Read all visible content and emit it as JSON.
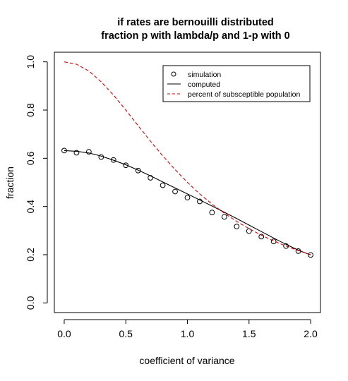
{
  "chart_data": {
    "type": "line",
    "title_line1": "if rates are bernouilli distributed",
    "title_line2": "fraction p with lambda/p and 1-p with 0",
    "xlabel": "coefficient of variance",
    "ylabel": "fraction",
    "xlim": [
      -0.08,
      2.08
    ],
    "ylim": [
      -0.04,
      1.04
    ],
    "xticks": [
      0,
      0.5,
      1,
      1.5,
      2
    ],
    "xtick_labels": [
      "0.0",
      "0.5",
      "1.0",
      "1.5",
      "2.0"
    ],
    "yticks": [
      0,
      0.2,
      0.4,
      0.6,
      0.8,
      1.0
    ],
    "ytick_labels": [
      "0.0",
      "0.2",
      "0.4",
      "0.6",
      "0.8",
      "1.0"
    ],
    "grid": false,
    "legend_position": "top-right",
    "legend": [
      {
        "label": "simulation",
        "symbol": "circle",
        "color": "#000000"
      },
      {
        "label": "computed",
        "symbol": "solid-line",
        "color": "#000000"
      },
      {
        "label": "percent of subsceptible population",
        "symbol": "dashed-line",
        "color": "#dd0000"
      }
    ],
    "series": [
      {
        "name": "simulation",
        "style": "points",
        "color": "#000000",
        "x": [
          0,
          0.1,
          0.2,
          0.3,
          0.4,
          0.5,
          0.6,
          0.7,
          0.8,
          0.9,
          1.0,
          1.1,
          1.2,
          1.3,
          1.4,
          1.5,
          1.6,
          1.7,
          1.8,
          1.9,
          2.0
        ],
        "y": [
          0.632,
          0.623,
          0.627,
          0.605,
          0.593,
          0.571,
          0.549,
          0.519,
          0.488,
          0.462,
          0.437,
          0.421,
          0.375,
          0.357,
          0.317,
          0.298,
          0.275,
          0.255,
          0.236,
          0.215,
          0.199
        ]
      },
      {
        "name": "computed",
        "style": "solid",
        "color": "#000000",
        "x": [
          0,
          0.1,
          0.2,
          0.3,
          0.4,
          0.5,
          0.6,
          0.7,
          0.8,
          0.9,
          1.0,
          1.1,
          1.2,
          1.3,
          1.4,
          1.5,
          1.6,
          1.7,
          1.8,
          1.9,
          2.0
        ],
        "y": [
          0.632,
          0.629,
          0.622,
          0.609,
          0.592,
          0.573,
          0.551,
          0.527,
          0.502,
          0.477,
          0.452,
          0.427,
          0.402,
          0.376,
          0.35,
          0.323,
          0.296,
          0.269,
          0.243,
          0.219,
          0.199
        ]
      },
      {
        "name": "percent of subsceptible population",
        "style": "dashed",
        "color": "#dd0000",
        "x": [
          0,
          0.1,
          0.2,
          0.3,
          0.4,
          0.5,
          0.6,
          0.7,
          0.8,
          0.9,
          1.0,
          1.1,
          1.2,
          1.3,
          1.4,
          1.5,
          1.6,
          1.7,
          1.8,
          1.9,
          2.0
        ],
        "y": [
          1.0,
          0.99,
          0.962,
          0.917,
          0.862,
          0.8,
          0.735,
          0.671,
          0.61,
          0.553,
          0.5,
          0.452,
          0.41,
          0.372,
          0.338,
          0.308,
          0.281,
          0.257,
          0.236,
          0.217,
          0.2
        ]
      }
    ]
  }
}
